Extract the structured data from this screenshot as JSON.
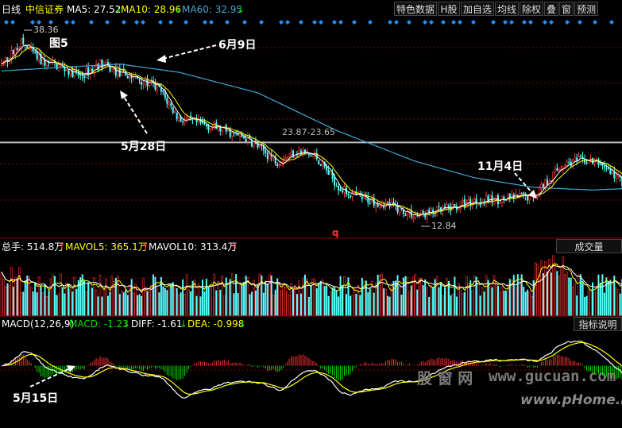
{
  "header": {
    "period": "日线",
    "stock_name": "中信证券",
    "ma5": "MA5: 27.52",
    "ma10": "MA10: 28.96",
    "ma60": "MA60: 32.95",
    "ma_arrow": "↓",
    "buttons": [
      "特色数据",
      "H股",
      "加自选",
      "均线",
      "除权",
      "叠",
      "窗",
      "预测"
    ]
  },
  "volume_header": {
    "total": "总手: 514.8万",
    "mavol5": "MAVOL5: 365.1万",
    "mavol10": "MAVOL10: 313.4万",
    "up_arrow": "↑",
    "button": "成交量"
  },
  "macd_header": {
    "name": "MACD(12,26,9)",
    "macd": "MACD: -1.23",
    "diff": "DIFF: -1.61",
    "dea": "DEA: -0.998",
    "down_arrow": "↓",
    "button": "指标说明"
  },
  "annotations": {
    "fig_label": "图5",
    "jun9": "6月9日",
    "may28": "5月28日",
    "nov4": "11月4日",
    "may15": "5月15日",
    "high": "38.36",
    "low": "12.84",
    "resistance": "23.87-23.65",
    "q_mark": "q"
  },
  "watermark": {
    "line1": "股 窗 网",
    "line2": "www.gucuan.com",
    "line3": "www.pHome.NET"
  },
  "colors": {
    "up": "#ff3232",
    "down": "#54ffff",
    "ma5": "#ffffff",
    "ma10": "#ffff00",
    "ma60": "#3fa9d6",
    "diff": "#ffffff",
    "dea": "#ffff00",
    "macd_pos": "#ff3232",
    "macd_neg": "#00e000",
    "grid": "#8b0000",
    "resistance_line": "#bdbdbd"
  },
  "chart_data": {
    "type": "candlestick",
    "price_range": [
      10,
      42
    ],
    "resistance": 23.76,
    "high_price": 38.36,
    "low_price": 12.84,
    "price_knots": [
      [
        0,
        35.0
      ],
      [
        10,
        38.3
      ],
      [
        20,
        35.6
      ],
      [
        30,
        34.8
      ],
      [
        40,
        33.4
      ],
      [
        50,
        35.2
      ],
      [
        60,
        33.8
      ],
      [
        70,
        33.0
      ],
      [
        80,
        31.5
      ],
      [
        90,
        27.2
      ],
      [
        100,
        26.5
      ],
      [
        110,
        25.8
      ],
      [
        125,
        24.2
      ],
      [
        140,
        21.0
      ],
      [
        150,
        22.5
      ],
      [
        160,
        21.5
      ],
      [
        172,
        17.0
      ],
      [
        180,
        15.8
      ],
      [
        195,
        14.8
      ],
      [
        210,
        13.1
      ],
      [
        225,
        13.9
      ],
      [
        240,
        15.2
      ],
      [
        255,
        15.5
      ],
      [
        270,
        16.0
      ],
      [
        285,
        20.6
      ],
      [
        295,
        21.2
      ],
      [
        305,
        20.5
      ],
      [
        315,
        18.0
      ]
    ],
    "ma60_knots": [
      [
        0,
        34.2
      ],
      [
        60,
        35.2
      ],
      [
        90,
        34.0
      ],
      [
        130,
        31.0
      ],
      [
        170,
        25.5
      ],
      [
        210,
        21.0
      ],
      [
        240,
        18.6
      ],
      [
        270,
        17.2
      ],
      [
        300,
        16.8
      ],
      [
        315,
        17.0
      ]
    ],
    "vol_range": [
      0,
      600
    ],
    "macd_range": [
      -3.2,
      1.9
    ]
  }
}
